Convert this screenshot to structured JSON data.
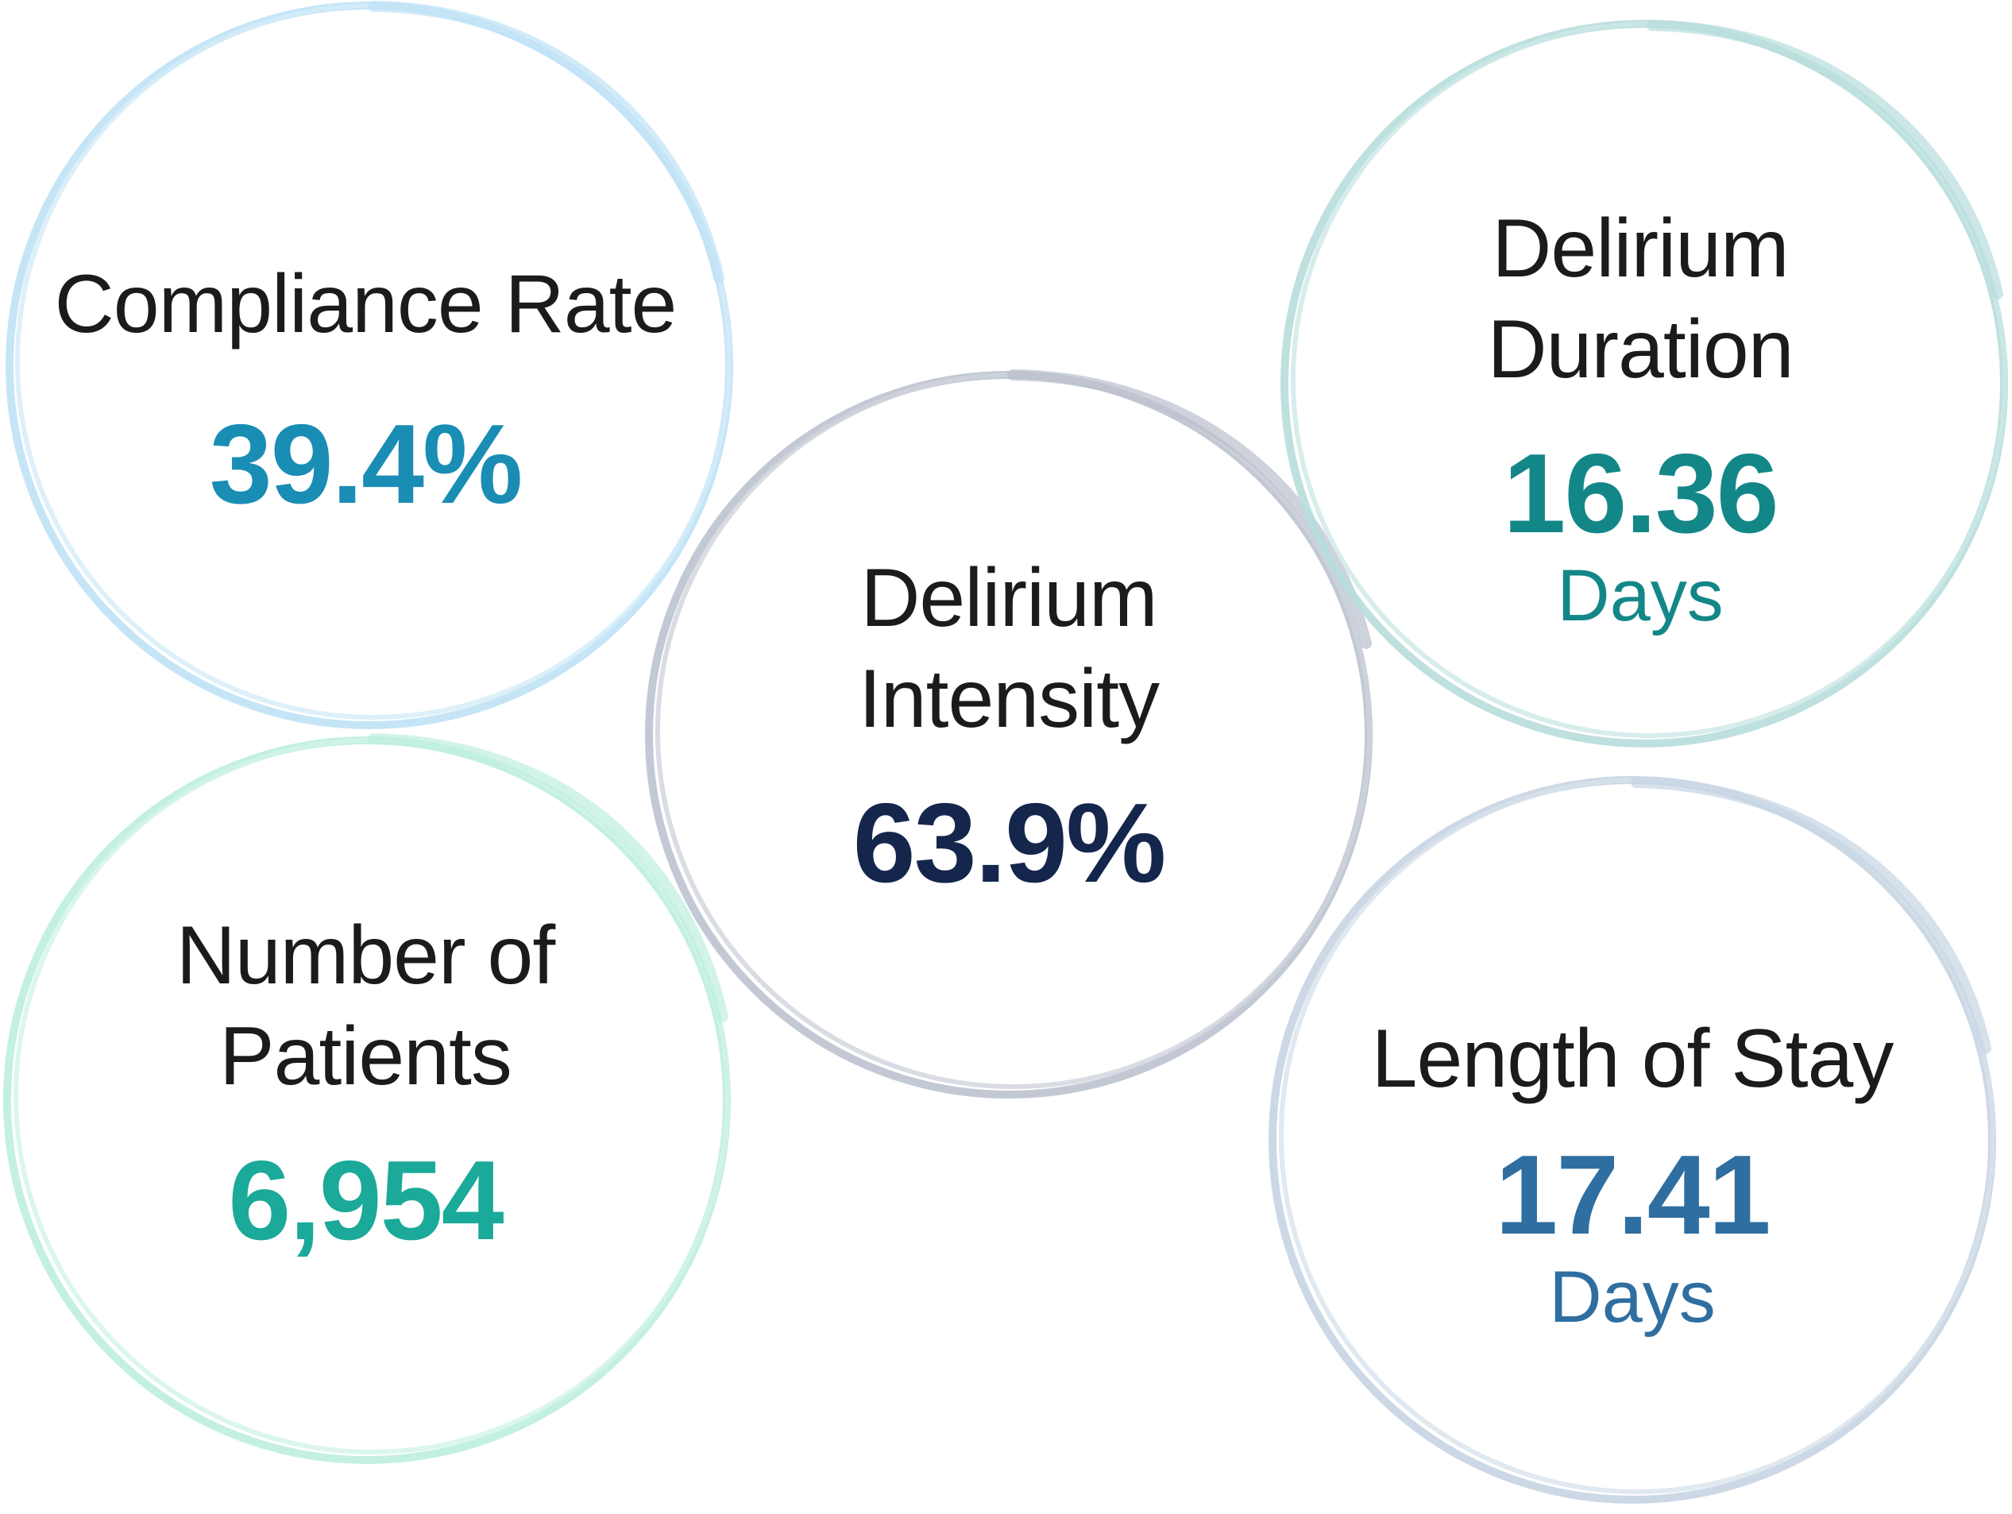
{
  "stats": [
    {
      "id": "compliance",
      "label_lines": [
        "Compliance Rate"
      ],
      "value": "39.4%",
      "unit": "",
      "value_color": "#1a8db5",
      "ring_color": "#bfe2f6"
    },
    {
      "id": "intensity",
      "label_lines": [
        "Delirium",
        "Intensity"
      ],
      "value": "63.9%",
      "unit": "",
      "value_color": "#14264c",
      "ring_color": "#b9bfcc"
    },
    {
      "id": "duration",
      "label_lines": [
        "Delirium",
        "Duration"
      ],
      "value": "16.36",
      "unit": "Days",
      "value_color": "#138788",
      "ring_color": "#b7dddb"
    },
    {
      "id": "patients",
      "label_lines": [
        "Number of",
        "Patients"
      ],
      "value": "6,954",
      "unit": "",
      "value_color": "#1ba999",
      "ring_color": "#bdeede"
    },
    {
      "id": "stay",
      "label_lines": [
        "Length of Stay"
      ],
      "value": "17.41",
      "unit": "Days",
      "value_color": "#2f6ea0",
      "ring_color": "#c6d4e2"
    }
  ]
}
